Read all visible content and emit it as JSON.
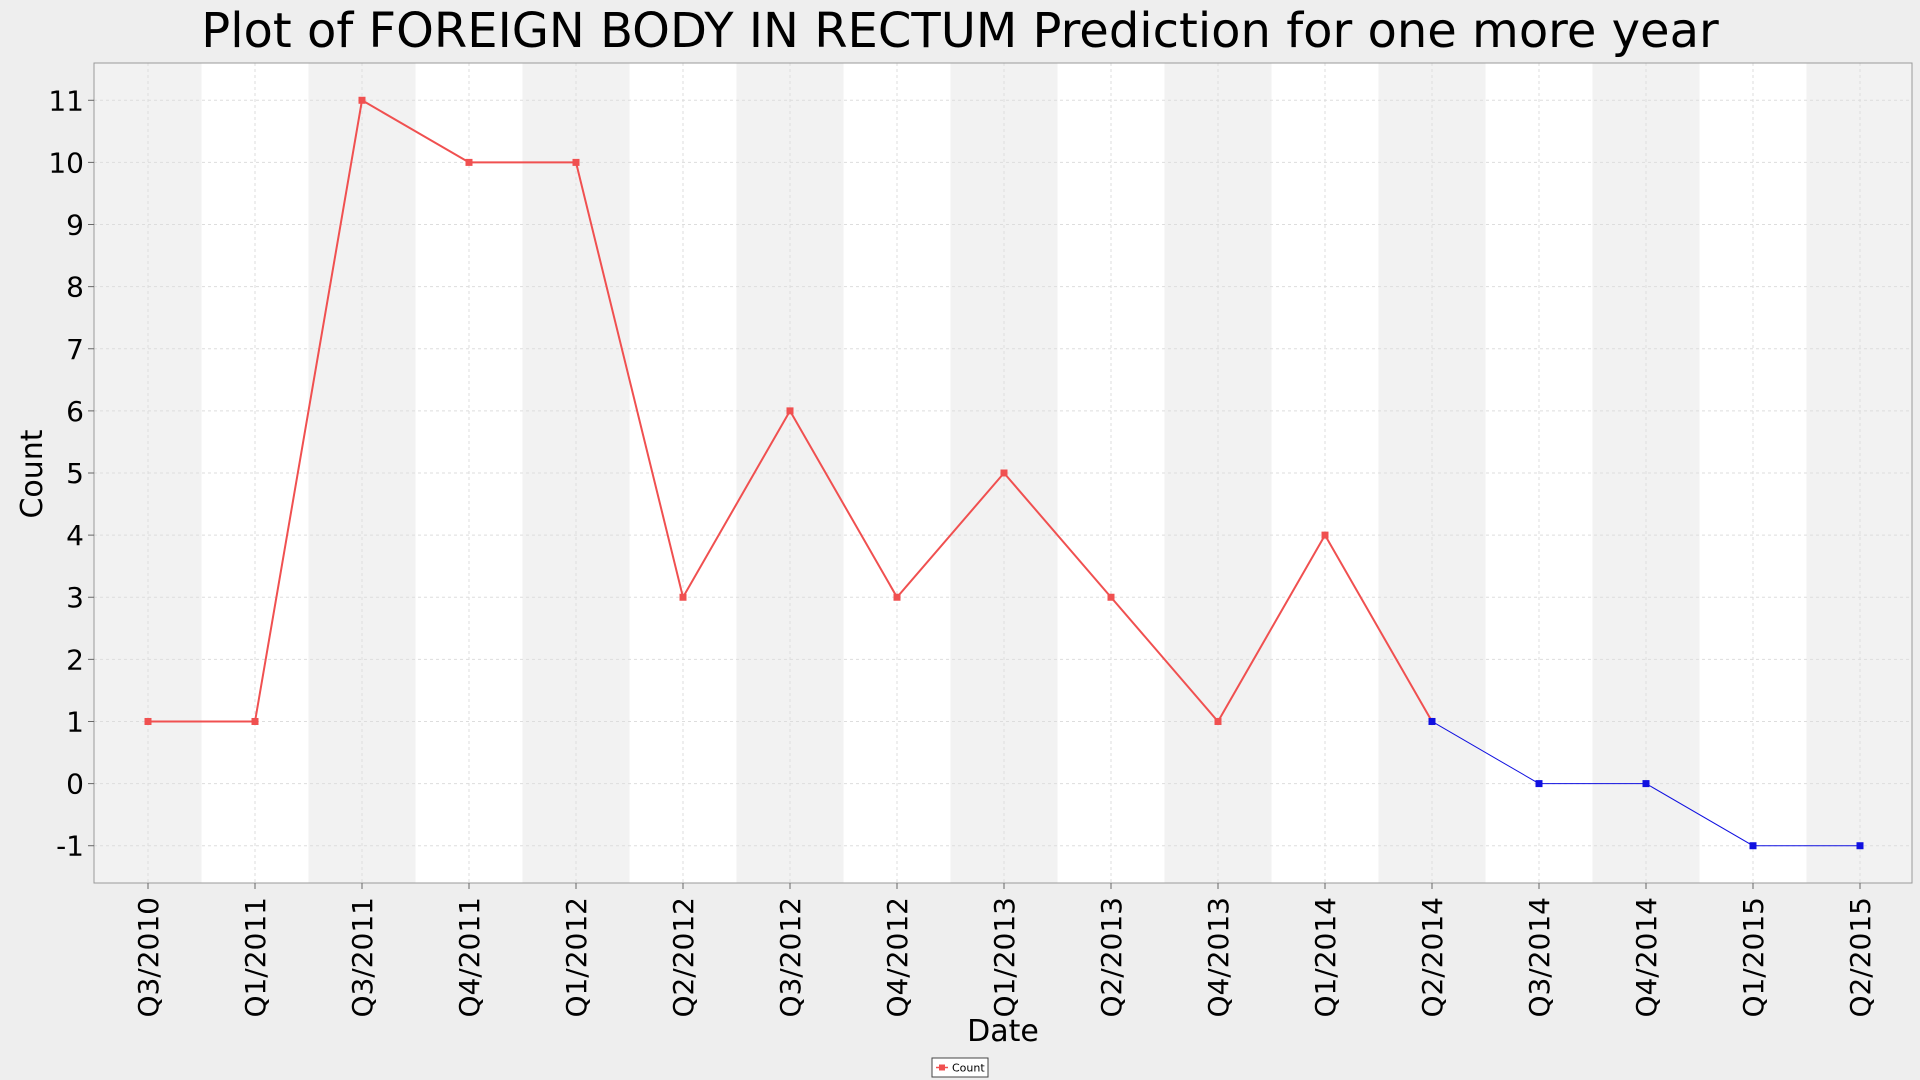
{
  "chart_data": {
    "type": "line",
    "title": "Plot of FOREIGN BODY IN RECTUM Prediction for one more year",
    "xlabel": "Date",
    "ylabel": "Count",
    "categories": [
      "Q3/2010",
      "Q1/2011",
      "Q3/2011",
      "Q4/2011",
      "Q1/2012",
      "Q2/2012",
      "Q3/2012",
      "Q4/2012",
      "Q1/2013",
      "Q2/2013",
      "Q4/2013",
      "Q1/2014",
      "Q2/2014",
      "Q3/2014",
      "Q4/2014",
      "Q1/2015",
      "Q2/2015"
    ],
    "yticks": [
      "-1",
      "0",
      "1",
      "2",
      "3",
      "4",
      "5",
      "6",
      "7",
      "8",
      "9",
      "10",
      "11"
    ],
    "ylim": [
      -1.6,
      11.6
    ],
    "grid": true,
    "legend_position": "bottom-center",
    "series": [
      {
        "name": "Count",
        "color": "#f05050",
        "values": [
          1,
          1,
          11,
          10,
          10,
          3,
          6,
          3,
          5,
          3,
          1,
          4,
          1,
          null,
          null,
          null,
          null
        ]
      },
      {
        "color": "#1010e0",
        "values": [
          null,
          null,
          null,
          null,
          null,
          null,
          null,
          null,
          null,
          null,
          null,
          null,
          1,
          0,
          0,
          -1,
          -1
        ]
      }
    ]
  }
}
